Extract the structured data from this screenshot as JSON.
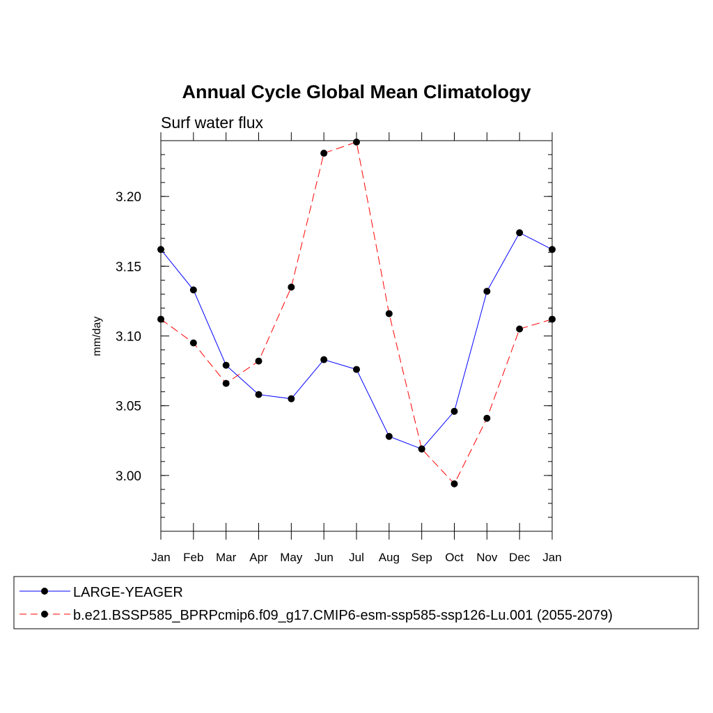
{
  "chart_data": {
    "type": "line",
    "title": "Annual Cycle Global Mean Climatology",
    "subtitle": "Surf water flux",
    "xlabel": "",
    "ylabel": "mm/day",
    "ylim": [
      2.96,
      3.24
    ],
    "yticks": [
      "3.00",
      "3.05",
      "3.10",
      "3.15",
      "3.20"
    ],
    "categories": [
      "Jan",
      "Feb",
      "Mar",
      "Apr",
      "May",
      "Jun",
      "Jul",
      "Aug",
      "Sep",
      "Oct",
      "Nov",
      "Dec",
      "Jan"
    ],
    "grid": false,
    "legend_position": "bottom",
    "series": [
      {
        "name": "LARGE-YEAGER",
        "color": "#0000ff",
        "dash": "solid",
        "values": [
          3.162,
          3.133,
          3.079,
          3.058,
          3.055,
          3.083,
          3.076,
          3.028,
          3.019,
          3.046,
          3.132,
          3.174,
          3.162
        ]
      },
      {
        "name": "b.e21.BSSP585_BPRPcmip6.f09_g17.CMIP6-esm-ssp585-ssp126-Lu.001 (2055-2079)",
        "color": "#ff0000",
        "dash": "dashed",
        "values": [
          3.112,
          3.095,
          3.066,
          3.082,
          3.135,
          3.231,
          3.239,
          3.116,
          3.019,
          2.994,
          3.041,
          3.105,
          3.112
        ]
      }
    ]
  }
}
